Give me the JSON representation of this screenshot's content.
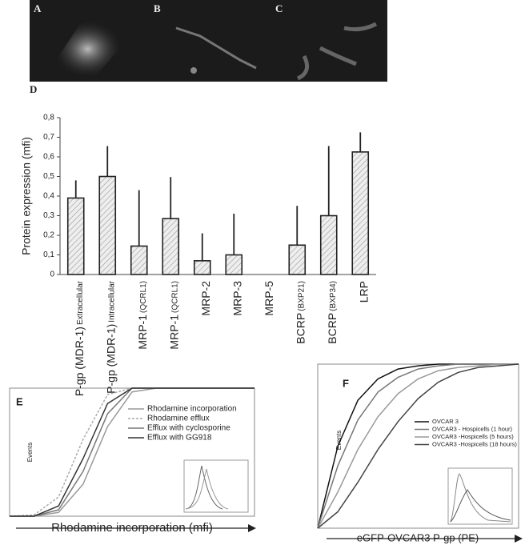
{
  "panels": [
    "A",
    "B",
    "C"
  ],
  "chart_data": [
    {
      "type": "bar",
      "label": "D",
      "ylabel": "Protein expression (mfi)",
      "categories": [
        "P-gp (MDR-1)",
        "P-gp (MDR-1)",
        "MRP-1",
        "MRP-1",
        "MRP-2",
        "MRP-3",
        "MRP-5",
        "BCRP",
        "BCRP",
        "LRP"
      ],
      "category_notes": [
        "Extracellular",
        "Intracellular",
        "(QCRL1)",
        "(QCRL1)",
        null,
        null,
        null,
        "(BXP21)",
        "(BXP34)",
        null
      ],
      "values": [
        0.39,
        0.5,
        0.145,
        0.285,
        0.07,
        0.1,
        0.0,
        0.15,
        0.3,
        0.625
      ],
      "errors": [
        0.09,
        0.155,
        0.285,
        0.212,
        0.14,
        0.21,
        0.0,
        0.2,
        0.355,
        0.1
      ],
      "color": "#e8e8e8",
      "ylim": [
        0,
        0.8
      ],
      "yticks": [
        0,
        {
          "value": 0.1,
          "label": "0,1"
        },
        {
          "value": 0.2,
          "label": "0,2"
        },
        {
          "value": 0.3,
          "label": "0,3"
        },
        {
          "value": 0.4,
          "label": "0,4"
        },
        {
          "value": 0.5,
          "label": "0,5"
        },
        {
          "value": 0.6,
          "label": "0,6"
        },
        {
          "value": 0.7,
          "label": "0,7"
        },
        {
          "value": 0.8,
          "label": "0,8"
        }
      ]
    },
    {
      "type": "line",
      "label": "E",
      "xlabel": "Rhodamine incorporation (mfi)",
      "ylabel": "Events",
      "x": [
        0,
        10,
        20,
        30,
        40,
        50,
        60,
        70,
        80,
        90,
        100
      ],
      "xlim": [
        0,
        100
      ],
      "ylim": [
        0,
        100
      ],
      "series": [
        {
          "name": "Rhodamine incorporation",
          "color": "#999999",
          "style": "solid",
          "values": [
            0,
            0,
            3,
            25,
            70,
            97,
            100,
            100,
            100,
            100,
            100
          ]
        },
        {
          "name": "Rhodamine efflux",
          "color": "#aaaaaa",
          "style": "dashed",
          "values": [
            0,
            1,
            15,
            60,
            95,
            100,
            100,
            100,
            100,
            100,
            100
          ]
        },
        {
          "name": "Efflux with cyclosporine",
          "color": "#777777",
          "style": "solid",
          "values": [
            0,
            0,
            5,
            35,
            80,
            100,
            100,
            100,
            100,
            100,
            100
          ]
        },
        {
          "name": "Efflux with GG918",
          "color": "#333333",
          "style": "solid",
          "values": [
            0,
            0,
            8,
            45,
            88,
            100,
            100,
            100,
            100,
            100,
            100
          ]
        }
      ]
    },
    {
      "type": "line",
      "label": "F",
      "xlabel": "eGFP-OVCAR3 P-gp (PE)",
      "ylabel": "Events",
      "x": [
        0,
        10,
        20,
        30,
        40,
        50,
        60,
        70,
        80,
        90,
        100
      ],
      "xlim": [
        0,
        100
      ],
      "ylim": [
        0,
        100
      ],
      "series": [
        {
          "name": "OVCAR 3",
          "color": "#111111",
          "style": "solid",
          "values": [
            0,
            50,
            78,
            91,
            97,
            99,
            100,
            100,
            100,
            100,
            100
          ]
        },
        {
          "name": "OVCAR3 - Hospicells (1 hour)",
          "color": "#777777",
          "style": "solid",
          "values": [
            0,
            38,
            66,
            83,
            92,
            97,
            99,
            100,
            100,
            100,
            100
          ]
        },
        {
          "name": "OVCAR3 -Hospicells (5 hours)",
          "color": "#999999",
          "style": "solid",
          "values": [
            0,
            22,
            48,
            68,
            82,
            91,
            96,
            98,
            99,
            100,
            100
          ]
        },
        {
          "name": "OVCAR3 -Hospicells (18 hours)",
          "color": "#444444",
          "style": "solid",
          "values": [
            0,
            10,
            28,
            48,
            65,
            79,
            89,
            95,
            98,
            99,
            100
          ]
        }
      ]
    }
  ]
}
